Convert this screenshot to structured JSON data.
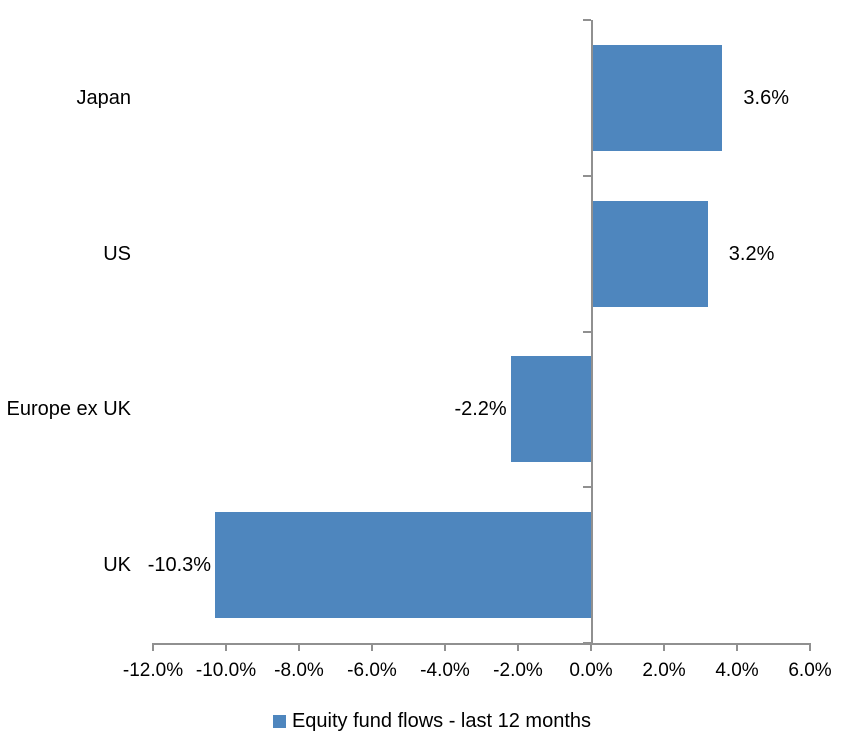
{
  "chart_data": {
    "type": "bar",
    "orientation": "horizontal",
    "title": "",
    "xlabel": "",
    "ylabel": "",
    "categories": [
      "Japan",
      "US",
      "Europe ex UK",
      "UK"
    ],
    "values": [
      3.6,
      3.2,
      -2.2,
      -10.3
    ],
    "value_labels": [
      "3.6%",
      "3.2%",
      "-2.2%",
      "-10.3%"
    ],
    "series": [
      {
        "name": "Equity fund flows - last 12 months",
        "values": [
          3.6,
          3.2,
          -2.2,
          -10.3
        ]
      }
    ],
    "xlim": [
      -12,
      6
    ],
    "x_ticks": [
      -12,
      -10,
      -8,
      -6,
      -4,
      -2,
      0,
      2,
      4,
      6
    ],
    "x_tick_labels": [
      "-12.0%",
      "-10.0%",
      "-8.0%",
      "-6.0%",
      "-4.0%",
      "-2.0%",
      "0.0%",
      "2.0%",
      "4.0%",
      "6.0%"
    ],
    "grid": false,
    "legend": {
      "position": "bottom",
      "label": "Equity fund flows - last 12 months"
    },
    "colors": {
      "bar": "#4E86BE",
      "axis": "#909090",
      "text": "#000000",
      "background": "#FFFFFF"
    }
  }
}
